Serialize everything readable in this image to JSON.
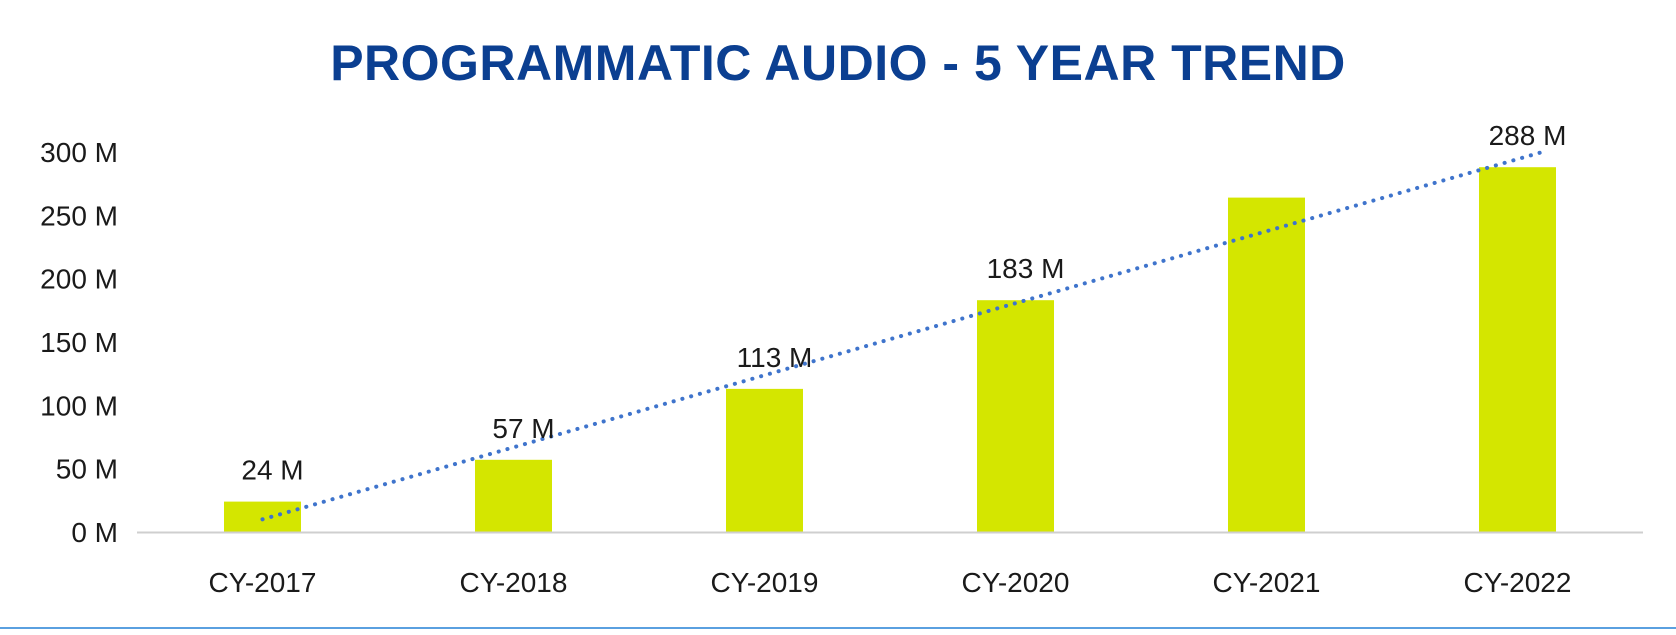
{
  "chart_data": {
    "type": "bar",
    "title": "PROGRAMMATIC AUDIO - 5 YEAR TREND",
    "categories": [
      "CY-2017",
      "CY-2018",
      "CY-2019",
      "CY-2020",
      "CY-2021",
      "CY-2022"
    ],
    "values": [
      24,
      57,
      113,
      183,
      264,
      288
    ],
    "data_labels": [
      "24 M",
      "57 M",
      "113 M",
      "183 M",
      "",
      "288 M"
    ],
    "unit_suffix": " M",
    "ylim": [
      0,
      300
    ],
    "yticks": [
      0,
      50,
      100,
      150,
      200,
      250,
      300
    ],
    "xlabel": "",
    "ylabel": "",
    "grid": false,
    "legend": "none",
    "trendline": {
      "type": "linear",
      "style": "dotted",
      "start": 10,
      "end": 300
    }
  },
  "colors": {
    "title": "#0b3f91",
    "bar": "#d4e600",
    "trendline": "#3f74cc",
    "axis": "#cfcfcf",
    "divider": "#5aa0e0"
  }
}
